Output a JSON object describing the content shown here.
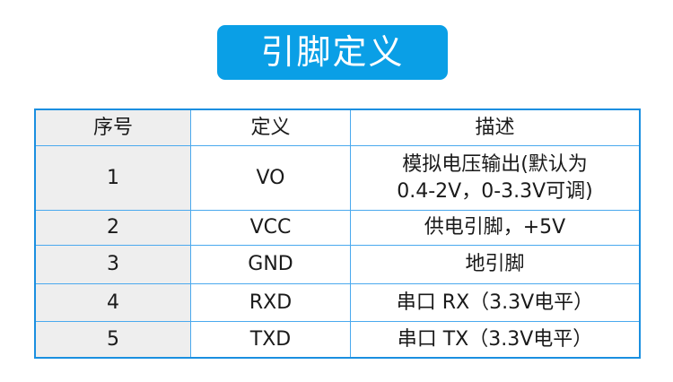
{
  "title": "引脚定义",
  "table": {
    "headers": [
      "序号",
      "定义",
      "描述"
    ],
    "rows": [
      {
        "no": "1",
        "def": "VO",
        "desc": [
          "模拟电压输出(默认为",
          "0.4-2V，0-3.3V可调)"
        ]
      },
      {
        "no": "2",
        "def": "VCC",
        "desc": [
          "供电引脚，+5V"
        ]
      },
      {
        "no": "3",
        "def": "GND",
        "desc": [
          "地引脚"
        ]
      },
      {
        "no": "4",
        "def": "RXD",
        "desc": [
          "串口 RX（3.3V电平）"
        ]
      },
      {
        "no": "5",
        "def": "TXD",
        "desc": [
          "串口 TX（3.3V电平）"
        ]
      }
    ]
  },
  "colors": {
    "accent": "#0a9fe6",
    "border": "#1a8fe0",
    "first_column_bg": "#eeeeee"
  }
}
